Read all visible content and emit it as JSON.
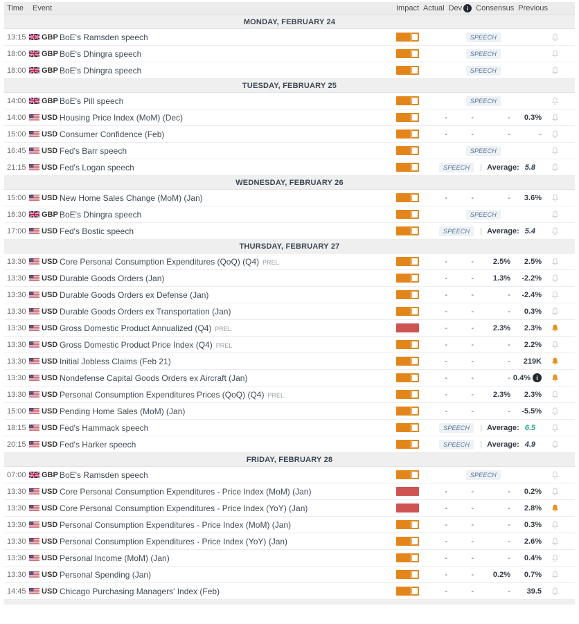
{
  "labels": {
    "speech": "SPEECH",
    "average": "Average:",
    "pipe": "|"
  },
  "icons": {
    "info_glyph": "i"
  },
  "colors": {
    "impact_medium": "#e2861c",
    "impact_high": "#cd5452",
    "bell_active": "#e8921f",
    "bell_inactive": "#cbcbcb",
    "average_navy": "#2e3f55",
    "average_green": "#21a38f",
    "speech_text": "#56789b",
    "speech_bg": "#eef1f5"
  },
  "header": {
    "time": "Time",
    "event": "Event",
    "impact": "Impact",
    "actual": "Actual",
    "dev": "Dev",
    "consensus": "Consensus",
    "previous": "Previous"
  },
  "sections": [
    {
      "title": "MONDAY, FEBRUARY 24",
      "rows": [
        {
          "time": "13:15",
          "ccy": "GBP",
          "event": "BoE's Ramsden speech",
          "impact": "medium",
          "speech": true,
          "bell": "off"
        },
        {
          "time": "18:00",
          "ccy": "GBP",
          "event": "BoE's Dhingra speech",
          "impact": "medium",
          "speech": true,
          "bell": "off"
        },
        {
          "time": "18:00",
          "ccy": "GBP",
          "event": "BoE's Dhingra speech",
          "impact": "medium",
          "speech": true,
          "bell": "off"
        }
      ]
    },
    {
      "title": "TUESDAY, FEBRUARY 25",
      "rows": [
        {
          "time": "14:00",
          "ccy": "GBP",
          "event": "BoE's Pill speech",
          "impact": "medium",
          "speech": true,
          "bell": "off"
        },
        {
          "time": "14:00",
          "ccy": "USD",
          "event": "Housing Price Index (MoM) (Dec)",
          "impact": "medium",
          "actual": "-",
          "dev": "-",
          "consensus": "-",
          "previous": "0.3%",
          "bell": "off"
        },
        {
          "time": "15:00",
          "ccy": "USD",
          "event": "Consumer Confidence (Feb)",
          "impact": "medium",
          "actual": "-",
          "dev": "-",
          "consensus": "-",
          "previous": "-",
          "bell": "off"
        },
        {
          "time": "16:45",
          "ccy": "USD",
          "event": "Fed's Barr speech",
          "impact": "medium",
          "speech": true,
          "bell": "off"
        },
        {
          "time": "21:15",
          "ccy": "USD",
          "event": "Fed's Logan speech",
          "impact": "medium",
          "speech": true,
          "average": "5.8",
          "average_color": "navy",
          "bell": "off"
        }
      ]
    },
    {
      "title": "WEDNESDAY, FEBRUARY 26",
      "rows": [
        {
          "time": "15:00",
          "ccy": "USD",
          "event": "New Home Sales Change (MoM) (Jan)",
          "impact": "medium",
          "actual": "-",
          "dev": "-",
          "consensus": "-",
          "previous": "3.6%",
          "bell": "off"
        },
        {
          "time": "16:30",
          "ccy": "GBP",
          "event": "BoE's Dhingra speech",
          "impact": "medium",
          "speech": true,
          "bell": "off"
        },
        {
          "time": "17:00",
          "ccy": "USD",
          "event": "Fed's Bostic speech",
          "impact": "medium",
          "speech": true,
          "average": "5.4",
          "average_color": "navy",
          "bell": "off"
        }
      ]
    },
    {
      "title": "THURSDAY, FEBRUARY 27",
      "rows": [
        {
          "time": "13:30",
          "ccy": "USD",
          "event": "Core Personal Consumption Expenditures (QoQ) (Q4)",
          "tag": "PREL",
          "impact": "medium",
          "actual": "-",
          "dev": "-",
          "consensus": "2.5%",
          "previous": "2.5%",
          "bell": "off"
        },
        {
          "time": "13:30",
          "ccy": "USD",
          "event": "Durable Goods Orders (Jan)",
          "impact": "medium",
          "actual": "-",
          "dev": "-",
          "consensus": "1.3%",
          "previous": "-2.2%",
          "bell": "off"
        },
        {
          "time": "13:30",
          "ccy": "USD",
          "event": "Durable Goods Orders ex Defense (Jan)",
          "impact": "medium",
          "actual": "-",
          "dev": "-",
          "consensus": "-",
          "previous": "-2.4%",
          "bell": "off"
        },
        {
          "time": "13:30",
          "ccy": "USD",
          "event": "Durable Goods Orders ex Transportation (Jan)",
          "impact": "medium",
          "actual": "-",
          "dev": "-",
          "consensus": "-",
          "previous": "0.3%",
          "bell": "off"
        },
        {
          "time": "13:30",
          "ccy": "USD",
          "event": "Gross Domestic Product Annualized (Q4)",
          "tag": "PREL",
          "impact": "high",
          "actual": "-",
          "dev": "-",
          "consensus": "2.3%",
          "previous": "2.3%",
          "bell": "on"
        },
        {
          "time": "13:30",
          "ccy": "USD",
          "event": "Gross Domestic Product Price Index (Q4)",
          "tag": "PREL",
          "impact": "medium",
          "actual": "-",
          "dev": "-",
          "consensus": "-",
          "previous": "2.2%",
          "bell": "off"
        },
        {
          "time": "13:30",
          "ccy": "USD",
          "event": "Initial Jobless Claims (Feb 21)",
          "impact": "medium",
          "actual": "-",
          "dev": "-",
          "consensus": "-",
          "previous": "219K",
          "bell": "on"
        },
        {
          "time": "13:30",
          "ccy": "USD",
          "event": "Nondefense Capital Goods Orders ex Aircraft (Jan)",
          "impact": "medium",
          "actual": "-",
          "dev": "-",
          "consensus": "-",
          "previous": "0.4%",
          "info": true,
          "bell": "on"
        },
        {
          "time": "13:30",
          "ccy": "USD",
          "event": "Personal Consumption Expenditures Prices (QoQ) (Q4)",
          "tag": "PREL",
          "impact": "medium",
          "actual": "-",
          "dev": "-",
          "consensus": "2.3%",
          "previous": "2.3%",
          "bell": "off"
        },
        {
          "time": "15:00",
          "ccy": "USD",
          "event": "Pending Home Sales (MoM) (Jan)",
          "impact": "medium",
          "actual": "-",
          "dev": "-",
          "consensus": "-",
          "previous": "-5.5%",
          "bell": "off"
        },
        {
          "time": "18:15",
          "ccy": "USD",
          "event": "Fed's Hammack speech",
          "impact": "medium",
          "speech": true,
          "average": "6.5",
          "average_color": "green",
          "bell": "off"
        },
        {
          "time": "20:15",
          "ccy": "USD",
          "event": "Fed's Harker speech",
          "impact": "medium",
          "speech": true,
          "average": "4.9",
          "average_color": "navy",
          "bell": "off"
        }
      ]
    },
    {
      "title": "FRIDAY, FEBRUARY 28",
      "rows": [
        {
          "time": "07:00",
          "ccy": "GBP",
          "event": "BoE's Ramsden speech",
          "impact": "medium",
          "speech": true,
          "bell": "off"
        },
        {
          "time": "13:30",
          "ccy": "USD",
          "event": "Core Personal Consumption Expenditures - Price Index (MoM) (Jan)",
          "impact": "high",
          "actual": "-",
          "dev": "-",
          "consensus": "-",
          "previous": "0.2%",
          "bell": "off"
        },
        {
          "time": "13:30",
          "ccy": "USD",
          "event": "Core Personal Consumption Expenditures - Price Index (YoY) (Jan)",
          "impact": "high",
          "actual": "-",
          "dev": "-",
          "consensus": "-",
          "previous": "2.8%",
          "bell": "on"
        },
        {
          "time": "13:30",
          "ccy": "USD",
          "event": "Personal Consumption Expenditures - Price Index (MoM) (Jan)",
          "impact": "medium",
          "actual": "-",
          "dev": "-",
          "consensus": "-",
          "previous": "0.3%",
          "bell": "off"
        },
        {
          "time": "13:30",
          "ccy": "USD",
          "event": "Personal Consumption Expenditures - Price Index (YoY) (Jan)",
          "impact": "medium",
          "actual": "-",
          "dev": "-",
          "consensus": "-",
          "previous": "2.6%",
          "bell": "off"
        },
        {
          "time": "13:30",
          "ccy": "USD",
          "event": "Personal Income (MoM) (Jan)",
          "impact": "medium",
          "actual": "-",
          "dev": "-",
          "consensus": "-",
          "previous": "0.4%",
          "bell": "off"
        },
        {
          "time": "13:30",
          "ccy": "USD",
          "event": "Personal Spending (Jan)",
          "impact": "medium",
          "actual": "-",
          "dev": "-",
          "consensus": "0.2%",
          "previous": "0.7%",
          "bell": "off"
        },
        {
          "time": "14:45",
          "ccy": "USD",
          "event": "Chicago Purchasing Managers' Index (Feb)",
          "impact": "medium",
          "actual": "-",
          "dev": "-",
          "consensus": "-",
          "previous": "39.5",
          "bell": "off"
        }
      ]
    }
  ]
}
